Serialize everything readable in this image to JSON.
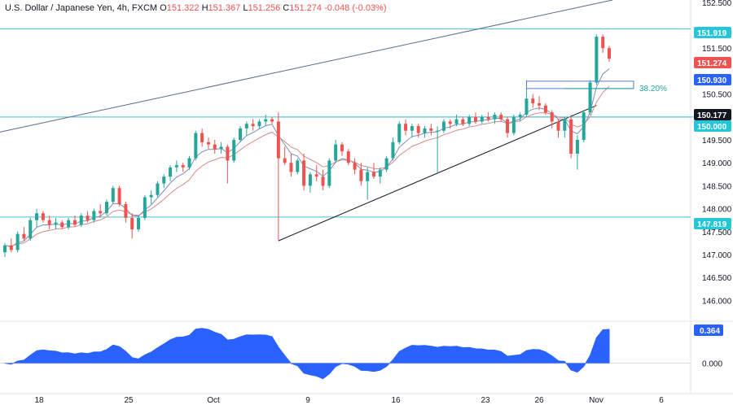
{
  "header": {
    "symbol": "U.S. Dollar / Japanese Yen, 4h, FXCM",
    "open_label": "O",
    "open": "151.322",
    "high_label": "H",
    "high": "151.367",
    "low_label": "L",
    "low": "151.256",
    "close_label": "C",
    "close": "151.274",
    "change": "-0.048 (-0.03%)"
  },
  "colors": {
    "up": "#26a69a",
    "down": "#ef5350",
    "ma_fast": "#7e8eb8",
    "ma_slow": "#d68a8a",
    "hline": "#4dbfcf",
    "trend": "#5b6b8c",
    "support_trend": "#131722",
    "osc": "#2962ff",
    "fib_line": "#26a69a",
    "fib_box": "#5b7bd5"
  },
  "chart_data": {
    "type": "candlestick",
    "price_axis": {
      "range": [
        145.6,
        152.55
      ],
      "ticks": [
        "152.500",
        "151.500",
        "150.500",
        "149.500",
        "149.000",
        "148.500",
        "148.000",
        "147.500",
        "147.000",
        "146.500",
        "146.000"
      ]
    },
    "x_axis": {
      "ticks": [
        "18",
        "25",
        "Oct",
        "9",
        "16",
        "23",
        "26",
        "Nov",
        "6"
      ]
    },
    "price_tags": [
      {
        "value": "151.919",
        "color": "#26c6da"
      },
      {
        "value": "151.274",
        "color": "#ef5350"
      },
      {
        "value": "150.930",
        "color": "#2962ff"
      },
      {
        "value": "150.177",
        "color": "#131722"
      },
      {
        "value": "150.000",
        "color": "#26c6da"
      },
      {
        "value": "147.819",
        "color": "#26c6da"
      }
    ],
    "horizontal_levels": [
      151.919,
      150.0,
      147.819
    ],
    "fib_label": "38.20%",
    "fib_level": 150.62,
    "fib_box": [
      150.62,
      150.78
    ],
    "oscillator": {
      "range": [
        -0.55,
        0.85
      ],
      "ticks": [
        "0.000"
      ],
      "last_tag": "0.364"
    },
    "candles_ohlc": [
      [
        147.05,
        147.25,
        146.95,
        147.2
      ],
      [
        147.2,
        147.35,
        147.05,
        147.1
      ],
      [
        147.1,
        147.5,
        147.05,
        147.45
      ],
      [
        147.45,
        147.6,
        147.3,
        147.35
      ],
      [
        147.35,
        147.8,
        147.3,
        147.75
      ],
      [
        147.75,
        148.0,
        147.6,
        147.9
      ],
      [
        147.9,
        147.95,
        147.7,
        147.75
      ],
      [
        147.75,
        147.85,
        147.55,
        147.65
      ],
      [
        147.65,
        147.8,
        147.55,
        147.7
      ],
      [
        147.7,
        147.75,
        147.55,
        147.6
      ],
      [
        147.6,
        147.8,
        147.55,
        147.75
      ],
      [
        147.75,
        147.85,
        147.6,
        147.65
      ],
      [
        147.65,
        147.9,
        147.6,
        147.85
      ],
      [
        147.85,
        147.95,
        147.7,
        147.75
      ],
      [
        147.75,
        148.0,
        147.7,
        147.95
      ],
      [
        147.95,
        148.1,
        147.8,
        147.9
      ],
      [
        147.9,
        148.2,
        147.85,
        148.15
      ],
      [
        148.15,
        148.5,
        148.1,
        148.45
      ],
      [
        148.45,
        148.5,
        148.05,
        148.1
      ],
      [
        148.1,
        148.15,
        147.7,
        147.8
      ],
      [
        147.8,
        147.9,
        147.35,
        147.55
      ],
      [
        147.55,
        147.85,
        147.5,
        147.8
      ],
      [
        147.8,
        148.3,
        147.75,
        148.25
      ],
      [
        148.25,
        148.4,
        148.1,
        148.3
      ],
      [
        148.3,
        148.6,
        148.25,
        148.55
      ],
      [
        148.55,
        148.75,
        148.45,
        148.7
      ],
      [
        148.7,
        148.95,
        148.6,
        148.9
      ],
      [
        148.9,
        149.05,
        148.8,
        148.95
      ],
      [
        148.95,
        149.0,
        148.8,
        148.9
      ],
      [
        148.9,
        149.15,
        148.85,
        149.1
      ],
      [
        149.1,
        149.7,
        149.05,
        149.65
      ],
      [
        149.65,
        149.75,
        149.35,
        149.45
      ],
      [
        149.45,
        149.55,
        149.3,
        149.4
      ],
      [
        149.4,
        149.5,
        149.2,
        149.3
      ],
      [
        149.3,
        149.45,
        149.2,
        149.35
      ],
      [
        149.35,
        149.4,
        148.55,
        149.05
      ],
      [
        149.05,
        149.55,
        149.0,
        149.5
      ],
      [
        149.5,
        149.8,
        149.45,
        149.75
      ],
      [
        149.75,
        149.9,
        149.6,
        149.85
      ],
      [
        149.85,
        149.95,
        149.7,
        149.8
      ],
      [
        149.8,
        149.95,
        149.75,
        149.9
      ],
      [
        149.9,
        150.05,
        149.8,
        149.95
      ],
      [
        149.95,
        150.0,
        149.85,
        149.9
      ],
      [
        149.9,
        150.1,
        147.3,
        149.1
      ],
      [
        149.1,
        149.35,
        148.95,
        149.0
      ],
      [
        149.0,
        149.2,
        148.7,
        148.8
      ],
      [
        148.8,
        149.1,
        148.75,
        149.05
      ],
      [
        149.05,
        149.2,
        148.4,
        148.5
      ],
      [
        148.5,
        148.8,
        148.35,
        148.75
      ],
      [
        148.75,
        148.95,
        148.6,
        148.7
      ],
      [
        148.7,
        148.85,
        148.4,
        148.5
      ],
      [
        148.5,
        149.1,
        148.45,
        149.05
      ],
      [
        149.05,
        149.5,
        149.0,
        149.4
      ],
      [
        149.4,
        149.45,
        149.15,
        149.25
      ],
      [
        149.25,
        149.3,
        148.95,
        149.0
      ],
      [
        149.0,
        149.1,
        148.75,
        148.85
      ],
      [
        148.85,
        149.0,
        148.5,
        148.6
      ],
      [
        148.6,
        148.9,
        148.2,
        148.8
      ],
      [
        148.8,
        149.0,
        148.65,
        148.7
      ],
      [
        148.7,
        148.9,
        148.55,
        148.85
      ],
      [
        148.85,
        149.15,
        148.8,
        149.1
      ],
      [
        149.1,
        149.55,
        149.05,
        149.45
      ],
      [
        149.45,
        149.9,
        149.4,
        149.85
      ],
      [
        149.85,
        149.95,
        149.6,
        149.7
      ],
      [
        149.7,
        149.85,
        149.55,
        149.8
      ],
      [
        149.8,
        149.85,
        149.55,
        149.65
      ],
      [
        149.65,
        149.8,
        149.55,
        149.75
      ],
      [
        149.75,
        149.85,
        149.6,
        149.7
      ],
      [
        149.7,
        149.8,
        148.75,
        149.7
      ],
      [
        149.7,
        149.95,
        149.65,
        149.9
      ],
      [
        149.9,
        149.95,
        149.75,
        149.85
      ],
      [
        149.85,
        150.05,
        149.8,
        149.95
      ],
      [
        149.95,
        150.0,
        149.8,
        149.85
      ],
      [
        149.85,
        150.05,
        149.8,
        150.0
      ],
      [
        150.0,
        150.1,
        149.85,
        149.9
      ],
      [
        149.9,
        150.05,
        149.85,
        150.0
      ],
      [
        150.0,
        150.1,
        149.9,
        149.95
      ],
      [
        149.95,
        150.1,
        149.85,
        150.05
      ],
      [
        150.05,
        150.1,
        149.9,
        149.95
      ],
      [
        149.95,
        150.0,
        149.55,
        149.65
      ],
      [
        149.65,
        150.05,
        149.6,
        150.0
      ],
      [
        150.0,
        150.1,
        149.9,
        150.05
      ],
      [
        150.05,
        150.8,
        150.0,
        150.4
      ],
      [
        150.4,
        150.5,
        150.2,
        150.3
      ],
      [
        150.3,
        150.45,
        150.15,
        150.25
      ],
      [
        150.25,
        150.3,
        150.05,
        150.1
      ],
      [
        150.1,
        150.15,
        149.75,
        149.9
      ],
      [
        149.9,
        149.95,
        149.55,
        149.7
      ],
      [
        149.7,
        150.0,
        149.55,
        149.95
      ],
      [
        149.95,
        150.05,
        149.1,
        149.2
      ],
      [
        149.2,
        149.6,
        148.85,
        149.5
      ],
      [
        149.5,
        150.15,
        149.45,
        150.1
      ],
      [
        150.1,
        150.8,
        150.05,
        150.75
      ],
      [
        150.75,
        151.8,
        150.7,
        151.75
      ],
      [
        151.75,
        151.8,
        151.4,
        151.5
      ],
      [
        151.5,
        151.55,
        151.2,
        151.27
      ]
    ]
  }
}
